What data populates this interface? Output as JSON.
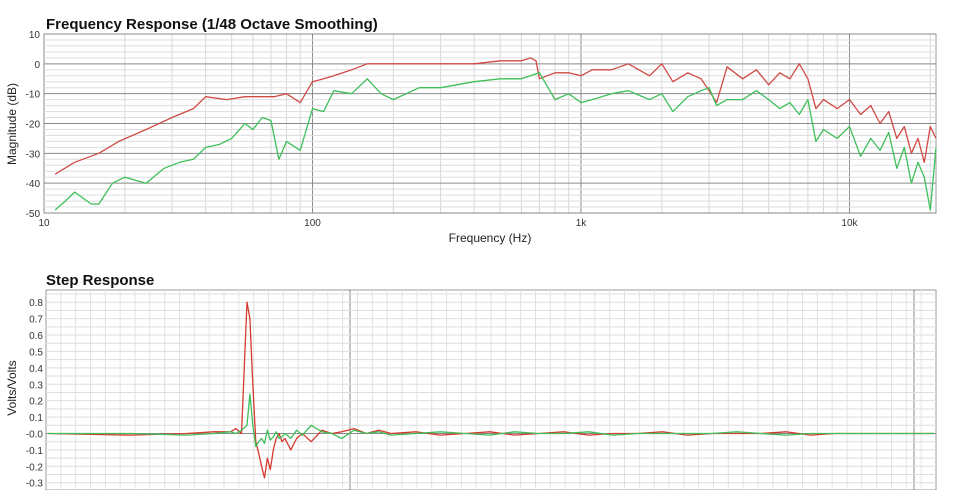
{
  "chart_data": [
    {
      "type": "line",
      "title": "Frequency Response (1/48 Octave Smoothing)",
      "xlabel": "Frequency (Hz)",
      "ylabel": "Magnitude (dB)",
      "xscale": "log",
      "xlim": [
        10,
        21000
      ],
      "ylim": [
        -50,
        10
      ],
      "xticks": [
        {
          "value": 10,
          "label": "10"
        },
        {
          "value": 100,
          "label": "100"
        },
        {
          "value": 1000,
          "label": "1k"
        },
        {
          "value": 10000,
          "label": "10k"
        }
      ],
      "yticks": [
        {
          "value": 10,
          "label": "10"
        },
        {
          "value": 0,
          "label": "0"
        },
        {
          "value": -10,
          "label": "-10"
        },
        {
          "value": -20,
          "label": "-20"
        },
        {
          "value": -30,
          "label": "-30"
        },
        {
          "value": -40,
          "label": "-40"
        },
        {
          "value": -50,
          "label": "-50"
        }
      ],
      "grid": true,
      "series": [
        {
          "color": "#d04a44",
          "x": [
            11,
            13,
            16,
            19,
            24,
            30,
            36,
            40,
            48,
            56,
            65,
            72,
            80,
            90,
            100,
            110,
            120,
            140,
            160,
            200,
            250,
            300,
            400,
            500,
            600,
            650,
            680,
            700,
            800,
            900,
            1000,
            1100,
            1300,
            1500,
            1800,
            2000,
            2200,
            2500,
            2800,
            3000,
            3200,
            3500,
            4000,
            4500,
            5000,
            5500,
            6000,
            6500,
            7000,
            7500,
            8000,
            9000,
            10000,
            11000,
            12000,
            13000,
            14000,
            15000,
            16000,
            17000,
            18000,
            19000,
            20000,
            21000
          ],
          "y": [
            -37,
            -33,
            -30,
            -26,
            -22,
            -18,
            -15,
            -11,
            -12,
            -11,
            -11,
            -11,
            -10,
            -13,
            -6,
            -5,
            -4,
            -2,
            0,
            0,
            0,
            0,
            0,
            1,
            1,
            2,
            1,
            -5,
            -3,
            -3,
            -4,
            -2,
            -2,
            0,
            -4,
            0,
            -6,
            -3,
            -5,
            -9,
            -13,
            -1,
            -5,
            -2,
            -7,
            -3,
            -5,
            0,
            -5,
            -15,
            -12,
            -15,
            -12,
            -17,
            -14,
            -20,
            -16,
            -25,
            -21,
            -30,
            -25,
            -33,
            -21,
            -25
          ]
        },
        {
          "color": "#3fbf5a",
          "x": [
            11,
            12,
            13,
            15,
            16,
            18,
            20,
            24,
            28,
            32,
            36,
            40,
            45,
            50,
            56,
            60,
            65,
            70,
            75,
            80,
            90,
            100,
            110,
            120,
            140,
            160,
            180,
            200,
            250,
            300,
            400,
            500,
            600,
            700,
            800,
            900,
            1000,
            1100,
            1300,
            1500,
            1800,
            2000,
            2200,
            2500,
            2800,
            3000,
            3200,
            3500,
            4000,
            4500,
            5000,
            5500,
            6000,
            6500,
            7000,
            7500,
            8000,
            9000,
            10000,
            11000,
            12000,
            13000,
            14000,
            15000,
            16000,
            17000,
            18000,
            19000,
            20000,
            21000
          ],
          "y": [
            -49,
            -46,
            -43,
            -47,
            -47,
            -40,
            -38,
            -40,
            -35,
            -33,
            -32,
            -28,
            -27,
            -25,
            -20,
            -22,
            -18,
            -19,
            -32,
            -26,
            -29,
            -15,
            -16,
            -9,
            -10,
            -5,
            -10,
            -12,
            -8,
            -8,
            -6,
            -5,
            -5,
            -3,
            -12,
            -10,
            -13,
            -12,
            -10,
            -9,
            -12,
            -10,
            -16,
            -11,
            -9,
            -8,
            -14,
            -12,
            -12,
            -9,
            -12,
            -15,
            -13,
            -17,
            -12,
            -26,
            -22,
            -25,
            -21,
            -31,
            -25,
            -29,
            -23,
            -35,
            -28,
            -40,
            -33,
            -38,
            -49,
            -28
          ]
        }
      ]
    },
    {
      "type": "line",
      "title": "Step Response",
      "xlabel": "",
      "ylabel": "Volts/Volts",
      "ylim": [
        -0.3,
        0.85
      ],
      "yticks": [
        {
          "value": 0.8,
          "label": "0.8"
        },
        {
          "value": 0.7,
          "label": "0.7"
        },
        {
          "value": 0.6,
          "label": "0.6"
        },
        {
          "value": 0.5,
          "label": "0.5"
        },
        {
          "value": 0.4,
          "label": "0.4"
        },
        {
          "value": 0.3,
          "label": "0.3"
        },
        {
          "value": 0.2,
          "label": "0.2"
        },
        {
          "value": 0.1,
          "label": "0.1"
        },
        {
          "value": 0.0,
          "label": "-0.0"
        },
        {
          "value": -0.1,
          "label": "-0.1"
        },
        {
          "value": -0.2,
          "label": "-0.2"
        },
        {
          "value": -0.3,
          "label": "-0.3"
        }
      ],
      "grid": true,
      "series": [
        {
          "color": "#d63a30",
          "x": [
            0,
            15,
            25,
            30,
            33,
            34,
            35,
            36,
            37,
            38,
            39,
            40,
            41,
            42,
            43,
            44,
            45,
            46,
            47,
            48,
            49,
            51,
            53,
            55,
            58,
            62,
            66,
            70,
            75,
            80,
            85,
            90,
            100,
            110,
            120,
            130,
            140,
            150,
            160,
            170,
            180,
            190,
            200,
            210,
            220,
            230,
            240,
            250,
            260,
            270,
            280,
            290,
            300,
            310
          ],
          "y": [
            0.0,
            -0.01,
            0.0,
            0.01,
            0.01,
            0.03,
            0.0,
            0.8,
            0.7,
            0.3,
            -0.05,
            -0.12,
            -0.2,
            -0.27,
            -0.15,
            -0.22,
            -0.1,
            -0.03,
            0.0,
            -0.05,
            -0.03,
            -0.1,
            -0.03,
            0.0,
            -0.05,
            0.02,
            0.0,
            0.01,
            0.03,
            0.0,
            0.02,
            0.0,
            0.01,
            -0.01,
            0.0,
            0.01,
            -0.01,
            0.0,
            0.01,
            -0.01,
            0.0,
            0.0,
            0.01,
            -0.01,
            0.0,
            0.0,
            0.0,
            0.01,
            -0.01,
            0.0,
            0.0,
            0.0,
            0.0,
            0.0
          ]
        },
        {
          "color": "#3fbf5a",
          "x": [
            0,
            15,
            25,
            30,
            33,
            34,
            35,
            36,
            37,
            38,
            39,
            40,
            41,
            42,
            43,
            44,
            45,
            46,
            47,
            48,
            49,
            51,
            53,
            55,
            58,
            62,
            66,
            70,
            75,
            80,
            85,
            90,
            100,
            110,
            120,
            130,
            140,
            150,
            160,
            170,
            180,
            190,
            200,
            210,
            220,
            230,
            240,
            250,
            260,
            270,
            280,
            290,
            300,
            310
          ],
          "y": [
            0.0,
            0.0,
            -0.01,
            0.0,
            0.01,
            0.0,
            0.02,
            0.05,
            0.24,
            0.05,
            -0.08,
            -0.05,
            -0.03,
            -0.06,
            0.02,
            -0.04,
            -0.02,
            0.01,
            -0.03,
            -0.02,
            0.0,
            -0.03,
            0.02,
            -0.01,
            0.05,
            0.01,
            0.0,
            -0.03,
            0.02,
            0.0,
            0.01,
            -0.01,
            0.0,
            0.01,
            0.0,
            -0.01,
            0.01,
            0.0,
            0.0,
            0.01,
            -0.01,
            0.0,
            0.0,
            0.0,
            0.0,
            0.01,
            0.0,
            -0.01,
            0.0,
            0.0,
            0.0,
            0.0,
            0.0,
            0.0
          ]
        }
      ]
    }
  ]
}
